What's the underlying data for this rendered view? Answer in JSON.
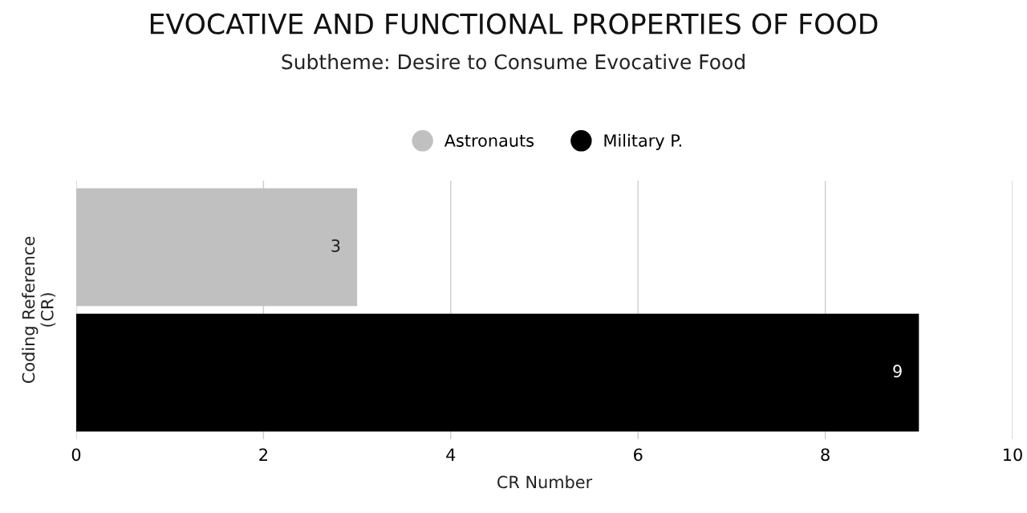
{
  "chart_data": {
    "type": "bar",
    "orientation": "horizontal",
    "title": "EVOCATIVE AND FUNCTIONAL PROPERTIES OF FOOD",
    "subtitle": "Subtheme: Desire to Consume Evocative Food",
    "xlabel": "CR Number",
    "ylabel": "Coding Reference\n(CR)",
    "categories": [
      null
    ],
    "series": [
      {
        "name": "Astronauts",
        "color": "#c0c0c0",
        "values": [
          3
        ]
      },
      {
        "name": "Military P.",
        "color": "#000000",
        "values": [
          9
        ]
      }
    ],
    "xlim": [
      0,
      10
    ],
    "xticks": [
      0,
      2,
      4,
      6,
      8,
      10
    ],
    "grid": "x",
    "legend": "top",
    "data_labels": true
  }
}
